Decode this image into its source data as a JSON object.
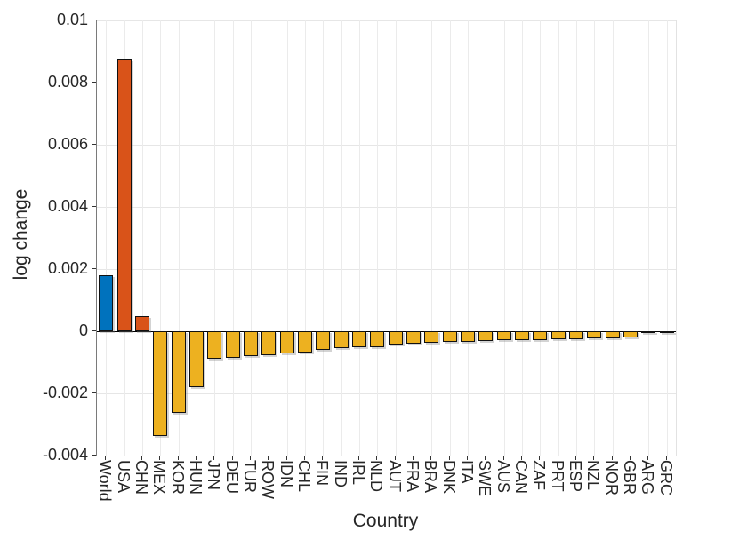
{
  "chart_data": {
    "type": "bar",
    "title": "",
    "xlabel": "Country",
    "ylabel": "log change",
    "ylim": [
      -0.004,
      0.01
    ],
    "yticks": [
      0.01,
      0.008,
      0.006,
      0.004,
      0.002,
      0,
      -0.002,
      -0.004
    ],
    "ytick_labels": [
      "0.01",
      "0.008",
      "0.006",
      "0.004",
      "0.002",
      "0",
      "-0.002",
      "-0.004"
    ],
    "grid": true,
    "legend": "none",
    "categories": [
      "World",
      "USA",
      "CHN",
      "MEX",
      "KOR",
      "HUN",
      "JPN",
      "DEU",
      "TUR",
      "ROW",
      "IDN",
      "CHL",
      "FIN",
      "IND",
      "IRL",
      "NLD",
      "AUT",
      "FRA",
      "BRA",
      "DNK",
      "ITA",
      "SWE",
      "AUS",
      "CAN",
      "ZAF",
      "PRT",
      "ESP",
      "NZL",
      "NOR",
      "GBR",
      "ARG",
      "GRC"
    ],
    "values": [
      0.0018,
      0.00873,
      0.00048,
      -0.00337,
      -0.00264,
      -0.00181,
      -0.00088,
      -0.00086,
      -0.0008,
      -0.00077,
      -0.0007,
      -0.00068,
      -0.0006,
      -0.00055,
      -0.00052,
      -0.0005,
      -0.00042,
      -0.0004,
      -0.00037,
      -0.00035,
      -0.00033,
      -0.00031,
      -0.0003,
      -0.00029,
      -0.00028,
      -0.00027,
      -0.00026,
      -0.00024,
      -0.00022,
      -0.0002,
      -7e-05,
      -5e-05
    ],
    "bar_colors": [
      "#0072bd",
      "#d95319",
      "#d95319",
      "#edb120",
      "#edb120",
      "#edb120",
      "#edb120",
      "#edb120",
      "#edb120",
      "#edb120",
      "#edb120",
      "#edb120",
      "#edb120",
      "#edb120",
      "#edb120",
      "#edb120",
      "#edb120",
      "#edb120",
      "#edb120",
      "#edb120",
      "#edb120",
      "#edb120",
      "#edb120",
      "#edb120",
      "#edb120",
      "#edb120",
      "#edb120",
      "#edb120",
      "#edb120",
      "#edb120",
      "#edb120",
      "#edb120"
    ]
  },
  "colors": {
    "world_blue": "#0072bd",
    "usa_chn_orange": "#d95319",
    "default_yellow": "#edb120",
    "bar_edge": "#111111",
    "grid": "#e6e6e6",
    "zero_baseline": "#000000",
    "axis_spine": "#7a7a7a",
    "text": "#262626",
    "background": "#ffffff"
  }
}
